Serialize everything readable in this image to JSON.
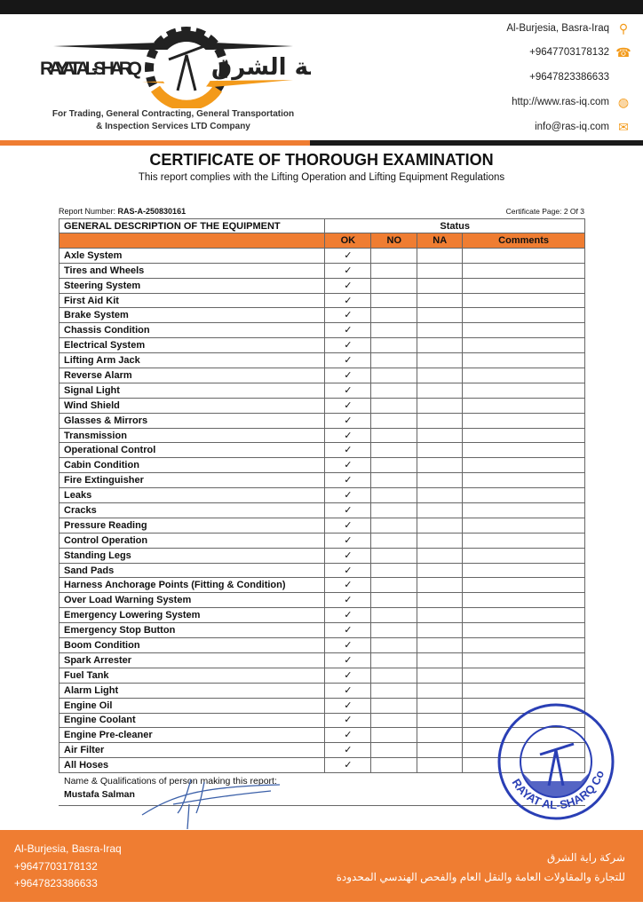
{
  "header": {
    "logo_text_en": "RAYAT AL-SHARQ",
    "logo_text_ar": "راية الشرق",
    "tagline_line1": "For Trading, General Contracting, General Transportation",
    "tagline_line2": "& Inspection Services LTD Company",
    "contacts": [
      {
        "text": "Al-Burjesia, Basra-Iraq",
        "icon": "location-pin-icon"
      },
      {
        "text": "+9647703178132",
        "icon": "phone-icon"
      },
      {
        "text": "+9647823386633",
        "icon": ""
      },
      {
        "text": "http://www.ras-iq.com",
        "icon": "globe-icon"
      },
      {
        "text": "info@ras-iq.com",
        "icon": "envelope-icon"
      }
    ]
  },
  "document": {
    "title": "CERTIFICATE OF THOROUGH EXAMINATION",
    "subtitle": "This report complies with the Lifting Operation and Lifting Equipment Regulations",
    "report_label": "Report Number: ",
    "report_number": "RAS-A-250830161",
    "page": "Certificate Page: 2 Of 3"
  },
  "table": {
    "desc_header": "GENERAL DESCRIPTION OF THE EQUIPMENT",
    "status_header": "Status",
    "columns": [
      "OK",
      "NO",
      "NA",
      "Comments"
    ],
    "check": "✓",
    "rows": [
      "Axle System",
      "Tires and Wheels",
      "Steering System",
      "First Aid Kit",
      "Brake System",
      "Chassis Condition",
      "Electrical System",
      "Lifting Arm Jack",
      "Reverse Alarm",
      "Signal Light",
      "Wind Shield",
      "Glasses & Mirrors",
      "Transmission",
      "Operational Control",
      "Cabin Condition",
      "Fire Extinguisher",
      "Leaks",
      "Cracks",
      "Pressure Reading",
      "Control Operation",
      "Standing Legs",
      "Sand Pads",
      "Harness Anchorage Points (Fitting & Condition)",
      "Over Load Warning System",
      "Emergency Lowering System",
      "Emergency Stop Button",
      "Boom Condition",
      "Spark Arrester",
      "Fuel Tank",
      "Alarm Light",
      "Engine Oil",
      "Engine Coolant",
      "Engine Pre-cleaner",
      "Air Filter",
      "All Hoses"
    ],
    "status": "OK"
  },
  "signature": {
    "label": "Name & Qualifications of person making this report:",
    "name": "Mustafa Salman"
  },
  "stamp": {
    "text": "RAYAT AL-SHARQ Co.",
    "text_ar": "شركة راية الشرق"
  },
  "footer": {
    "address": "Al-Burjesia, Basra-Iraq",
    "phone1": "+9647703178132",
    "phone2": "+9647823386633",
    "ar_line1": "شركة راية الشرق",
    "ar_line2": "للتجارة والمقاولات العامة والنقل العام والفحص الهندسي المحدودة"
  },
  "colors": {
    "accent": "#ef7d32",
    "dark": "#171717",
    "stamp": "#2a3fb5"
  }
}
